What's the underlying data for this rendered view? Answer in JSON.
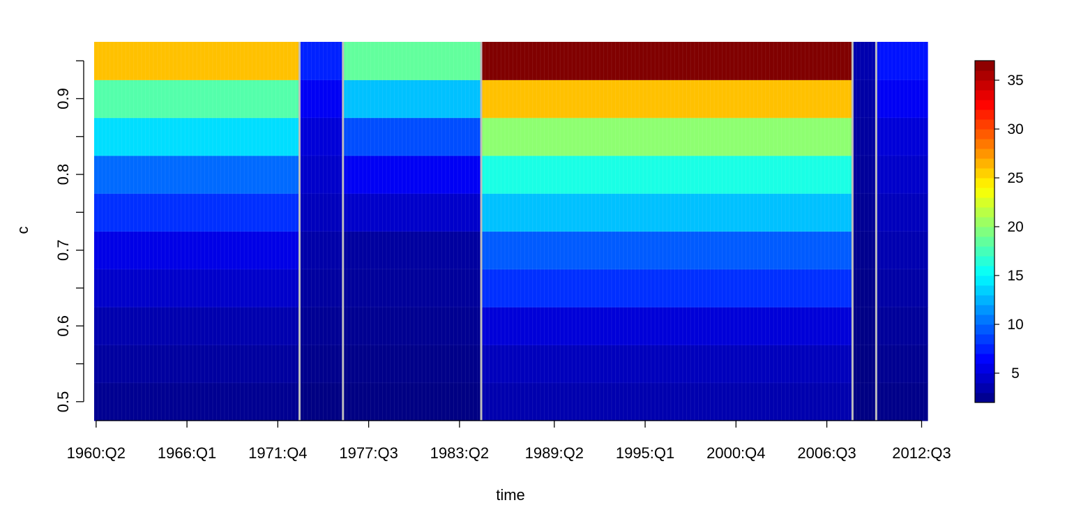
{
  "chart_data": {
    "type": "heatmap",
    "title": "",
    "xlabel": "time",
    "ylabel": "c",
    "x_tick_labels": [
      "1960:Q2",
      "1966:Q1",
      "1971:Q4",
      "1977:Q3",
      "1983:Q2",
      "1989:Q2",
      "1995:Q1",
      "2000:Q4",
      "2006:Q3",
      "2012:Q3"
    ],
    "x_tick_index": [
      0,
      23,
      46,
      69,
      92,
      116,
      139,
      162,
      185,
      209
    ],
    "n_periods": 211,
    "y_levels": [
      0.5,
      0.55,
      0.6,
      0.65,
      0.7,
      0.75,
      0.8,
      0.85,
      0.9,
      0.95
    ],
    "y_ticks": [
      0.5,
      0.6,
      0.7,
      0.8,
      0.9
    ],
    "y_tick_labels": [
      "0.5",
      "0.6",
      "0.7",
      "0.8",
      "0.9"
    ],
    "colorbar": {
      "min": 2,
      "max": 37,
      "ticks": [
        5,
        10,
        15,
        20,
        25,
        30,
        35
      ],
      "tick_labels": [
        "5",
        "10",
        "15",
        "20",
        "25",
        "30",
        "35"
      ]
    },
    "regime_breaks": [
      52,
      63,
      98,
      192,
      198
    ],
    "segments": [
      {
        "period": "1960:Q2–1973:Q1",
        "values": [
          2.5,
          3.0,
          3.5,
          4.5,
          5.5,
          8.0,
          10.0,
          14.0,
          18.0,
          26.0
        ]
      },
      {
        "period": "1973:Q2–1975:Q4",
        "values": [
          2.0,
          2.3,
          2.6,
          3.0,
          3.3,
          4.0,
          4.5,
          5.0,
          6.0,
          7.5
        ]
      },
      {
        "period": "1976:Q1–1984:Q3",
        "values": [
          2.0,
          2.2,
          2.5,
          2.8,
          3.0,
          4.5,
          6.0,
          9.0,
          13.0,
          18.5
        ]
      },
      {
        "period": "1984:Q4–2008:Q1",
        "values": [
          3.5,
          4.0,
          5.0,
          8.0,
          9.5,
          13.0,
          16.0,
          20.0,
          26.0,
          37.0
        ]
      },
      {
        "period": "2008:Q2–2009:Q3",
        "values": [
          2.0,
          2.0,
          2.1,
          2.2,
          2.4,
          2.6,
          2.8,
          3.0,
          3.2,
          3.5
        ]
      },
      {
        "period": "2009:Q4–2012:Q4",
        "values": [
          2.2,
          2.5,
          2.8,
          3.2,
          3.6,
          4.0,
          4.5,
          5.0,
          6.0,
          7.0
        ]
      }
    ]
  }
}
